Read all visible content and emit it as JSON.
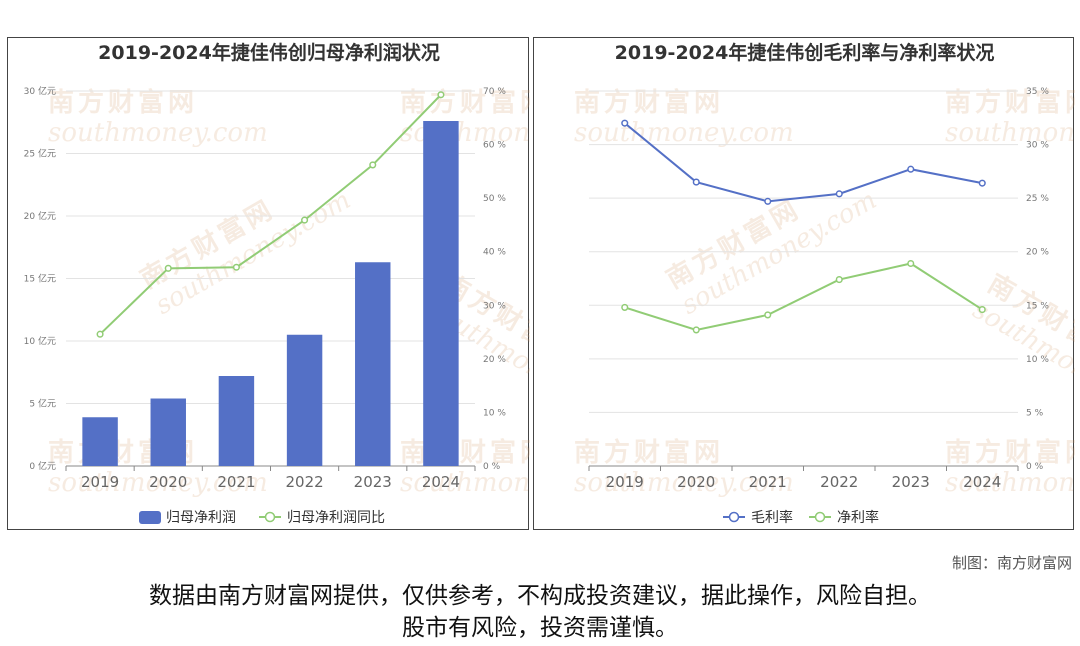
{
  "chart_data": [
    {
      "type": "bar",
      "title": "2019-2024年捷佳伟创归母净利润状况",
      "categories": [
        "2019",
        "2020",
        "2021",
        "2022",
        "2023",
        "2024"
      ],
      "series": [
        {
          "name": "归母净利润",
          "type": "bar",
          "axis": "left",
          "color": "#5470c6",
          "values": [
            3.9,
            5.4,
            7.2,
            10.5,
            16.3,
            27.6
          ]
        },
        {
          "name": "归母净利润同比",
          "type": "line",
          "axis": "right",
          "color": "#91cc75",
          "values": [
            24.6,
            36.9,
            37.1,
            45.9,
            56.2,
            69.3
          ]
        }
      ],
      "y_left": {
        "min": 0,
        "max": 30,
        "step": 5,
        "unit": "亿元",
        "ticks": [
          "0 亿元",
          "5 亿元",
          "10 亿元",
          "15 亿元",
          "20 亿元",
          "25 亿元",
          "30 亿元"
        ]
      },
      "y_right": {
        "min": 0,
        "max": 70,
        "step": 10,
        "unit": "%",
        "ticks": [
          "0 %",
          "10 %",
          "20 %",
          "30 %",
          "40 %",
          "50 %",
          "60 %",
          "70 %"
        ]
      },
      "legend_position": "bottom-center",
      "grid": true
    },
    {
      "type": "line",
      "title": "2019-2024年捷佳伟创毛利率与净利率状况",
      "categories": [
        "2019",
        "2020",
        "2021",
        "2022",
        "2023",
        "2024"
      ],
      "series": [
        {
          "name": "毛利率",
          "color": "#5470c6",
          "values": [
            32.0,
            26.5,
            24.7,
            25.4,
            27.7,
            26.4
          ]
        },
        {
          "name": "净利率",
          "color": "#91cc75",
          "values": [
            14.8,
            12.7,
            14.1,
            17.4,
            18.9,
            14.6
          ]
        }
      ],
      "y_right": {
        "min": 0,
        "max": 35,
        "step": 5,
        "unit": "%",
        "ticks": [
          "0 %",
          "5 %",
          "10 %",
          "15 %",
          "20 %",
          "25 %",
          "30 %",
          "35 %"
        ]
      },
      "legend_position": "bottom-center",
      "grid": true
    }
  ],
  "watermark": {
    "cn": "南方财富网",
    "en": "southmoney.com"
  },
  "footer": {
    "credit": "制图：南方财富网",
    "disclaimer_line1": "数据由南方财富网提供，仅供参考，不构成投资建议，据此操作，风险自担。",
    "disclaimer_line2": "股市有风险，投资需谨慎。"
  }
}
